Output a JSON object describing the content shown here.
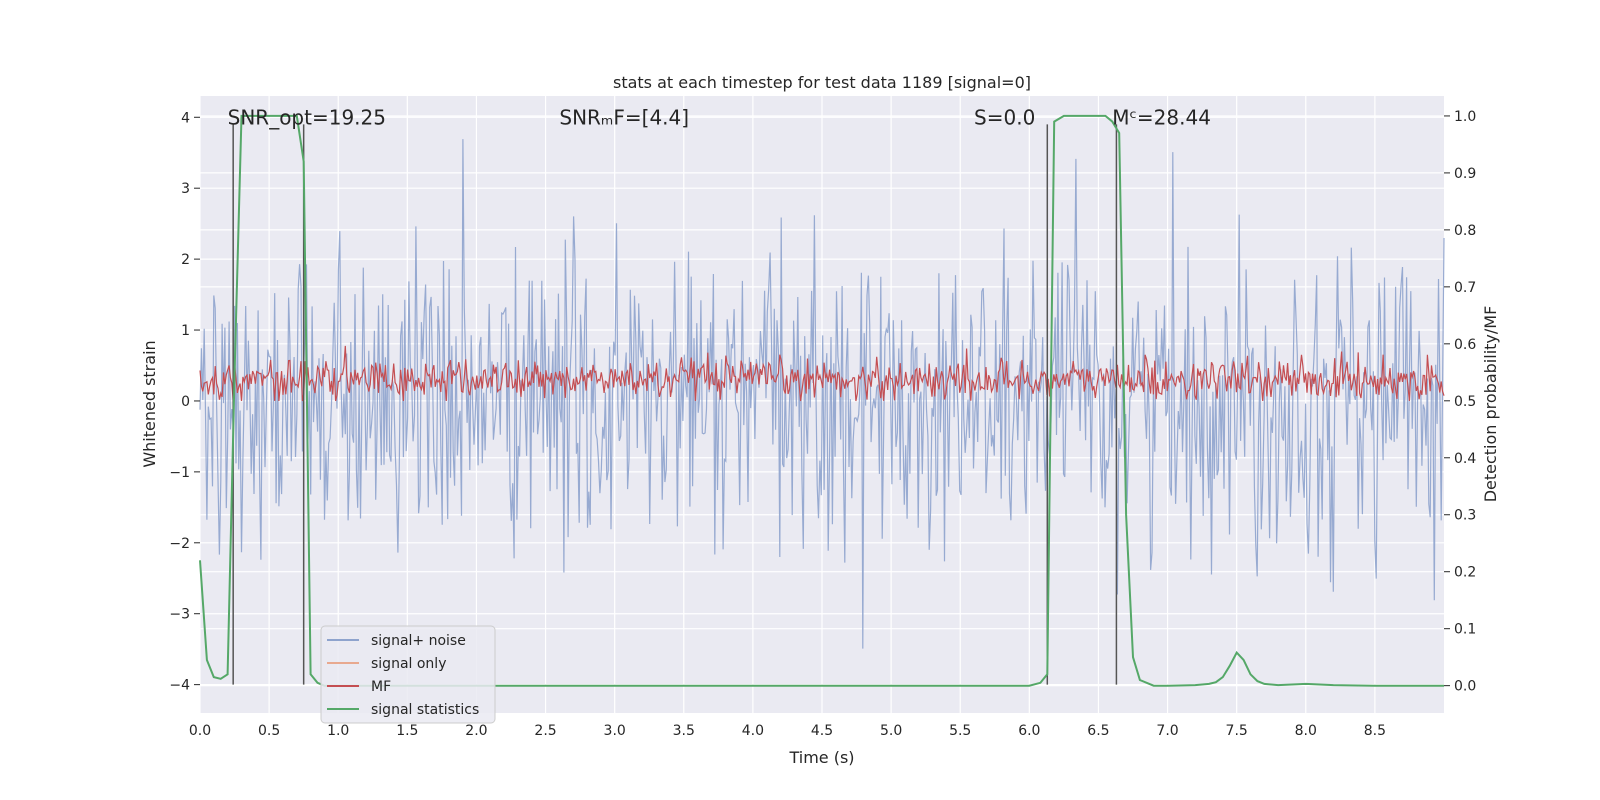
{
  "chart_data": {
    "type": "line",
    "title": "stats at each timestep for test data 1189 [signal=0]",
    "xlabel": "Time (s)",
    "ylabel": "Whitened strain",
    "ylabel_right": "Detection probability/MF",
    "xlim": [
      0.0,
      9.0
    ],
    "ylim": [
      -4.4,
      4.3
    ],
    "ylim_right": [
      -0.048,
      1.035
    ],
    "x_ticks": [
      0.0,
      0.5,
      1.0,
      1.5,
      2.0,
      2.5,
      3.0,
      3.5,
      4.0,
      4.5,
      5.0,
      5.5,
      6.0,
      6.5,
      7.0,
      7.5,
      8.0,
      8.5
    ],
    "x_tick_labels": [
      "0.0",
      "0.5",
      "1.0",
      "1.5",
      "2.0",
      "2.5",
      "3.0",
      "3.5",
      "4.0",
      "4.5",
      "5.0",
      "5.5",
      "6.0",
      "6.5",
      "7.0",
      "7.5",
      "8.0",
      "8.5"
    ],
    "y_ticks": [
      4,
      3,
      2,
      1,
      0,
      -1,
      -2,
      -3,
      -4
    ],
    "y_tick_labels": [
      "4",
      "3",
      "2",
      "1",
      "0",
      "−1",
      "−2",
      "−3",
      "−4"
    ],
    "y_ticks_right": [
      1.0,
      0.9,
      0.8,
      0.7,
      0.6,
      0.5,
      0.4,
      0.3,
      0.2,
      0.1,
      0.0
    ],
    "y_tick_labels_right": [
      "1.0",
      "0.9",
      "0.8",
      "0.7",
      "0.6",
      "0.5",
      "0.4",
      "0.3",
      "0.2",
      "0.1",
      "0.0"
    ],
    "grid": true,
    "legend_position": "lower-left",
    "annotations": [
      {
        "text": "SNR_opt=19.25",
        "x": 0.2,
        "y": 4.0
      },
      {
        "text": "SNRₘF=[4.4]",
        "x": 2.6,
        "y": 4.0
      },
      {
        "text": "S=0.0",
        "x": 5.6,
        "y": 4.0
      },
      {
        "text": "Mᶜ=28.44",
        "x": 6.6,
        "y": 4.0
      }
    ],
    "vertical_lines_x": [
      0.24,
      0.75,
      6.13,
      6.63
    ],
    "series": [
      {
        "name": "signal+ noise",
        "axis": "left",
        "color": "#8ea3cd",
        "kind": "noise",
        "typical_range": [
          -1.6,
          1.6
        ],
        "extremes": [
          -4.0,
          3.9
        ],
        "samples": 900
      },
      {
        "name": "signal only",
        "axis": "left",
        "color": "#e8a98f",
        "x": [],
        "y": []
      },
      {
        "name": "MF",
        "axis": "left",
        "color": "#c44e52",
        "kind": "noise",
        "typical_range": [
          0.05,
          0.6
        ],
        "extremes": [
          0.0,
          1.0
        ],
        "samples": 900
      },
      {
        "name": "signal statistics",
        "axis": "right",
        "color": "#55a868",
        "x": [
          0.0,
          0.05,
          0.1,
          0.15,
          0.2,
          0.25,
          0.3,
          0.4,
          0.5,
          0.6,
          0.7,
          0.75,
          0.8,
          0.85,
          0.9,
          1.0,
          2.0,
          3.0,
          4.0,
          5.0,
          5.5,
          6.0,
          6.08,
          6.13,
          6.18,
          6.25,
          6.4,
          6.55,
          6.6,
          6.65,
          6.7,
          6.75,
          6.8,
          6.9,
          7.0,
          7.2,
          7.3,
          7.35,
          7.4,
          7.45,
          7.5,
          7.55,
          7.6,
          7.65,
          7.7,
          7.8,
          8.0,
          8.2,
          8.5,
          9.0
        ],
        "y": [
          0.22,
          0.045,
          0.015,
          0.012,
          0.02,
          0.55,
          1.0,
          1.0,
          1.0,
          1.0,
          1.0,
          0.92,
          0.02,
          0.005,
          0.0,
          0.0,
          0.0,
          0.0,
          0.0,
          0.0,
          0.0,
          0.0,
          0.005,
          0.02,
          0.99,
          1.0,
          1.0,
          1.0,
          0.99,
          0.97,
          0.3,
          0.05,
          0.01,
          0.0,
          0.0,
          0.001,
          0.003,
          0.006,
          0.015,
          0.035,
          0.058,
          0.045,
          0.02,
          0.008,
          0.003,
          0.001,
          0.003,
          0.001,
          0.0,
          0.0
        ]
      }
    ]
  }
}
